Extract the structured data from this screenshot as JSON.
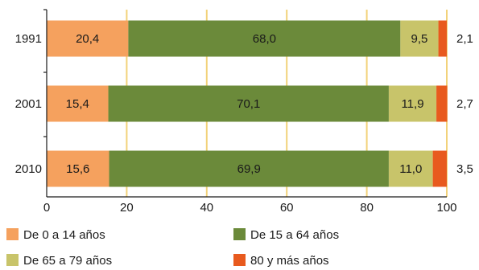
{
  "chart_data": {
    "type": "bar",
    "orientation": "horizontal",
    "stacked": true,
    "categories": [
      "1991",
      "2001",
      "2010"
    ],
    "series": [
      {
        "name": "De 0 a 14 años",
        "values": [
          20.4,
          15.4,
          15.6
        ],
        "labels": [
          "20,4",
          "15,4",
          "15,6"
        ],
        "color": "#f5a15e"
      },
      {
        "name": "De 15 a 64 años",
        "values": [
          68.0,
          70.1,
          69.9
        ],
        "labels": [
          "68,0",
          "70,1",
          "69,9"
        ],
        "color": "#6b8a3a"
      },
      {
        "name": "De 65 a 79 años",
        "values": [
          9.5,
          11.9,
          11.0
        ],
        "labels": [
          "9,5",
          "11,9",
          "11,0"
        ],
        "color": "#c8c46a"
      },
      {
        "name": "80 y más años",
        "values": [
          2.1,
          2.7,
          3.5
        ],
        "labels": [
          "2,1",
          "2,7",
          "3,5"
        ],
        "color": "#e85a1e"
      }
    ],
    "xlim": [
      0,
      100
    ],
    "xticks": [
      "0",
      "20",
      "40",
      "60",
      "80",
      "100"
    ],
    "grid": true,
    "grid_color": "#f2d27a",
    "legend_placement": "bottom"
  }
}
